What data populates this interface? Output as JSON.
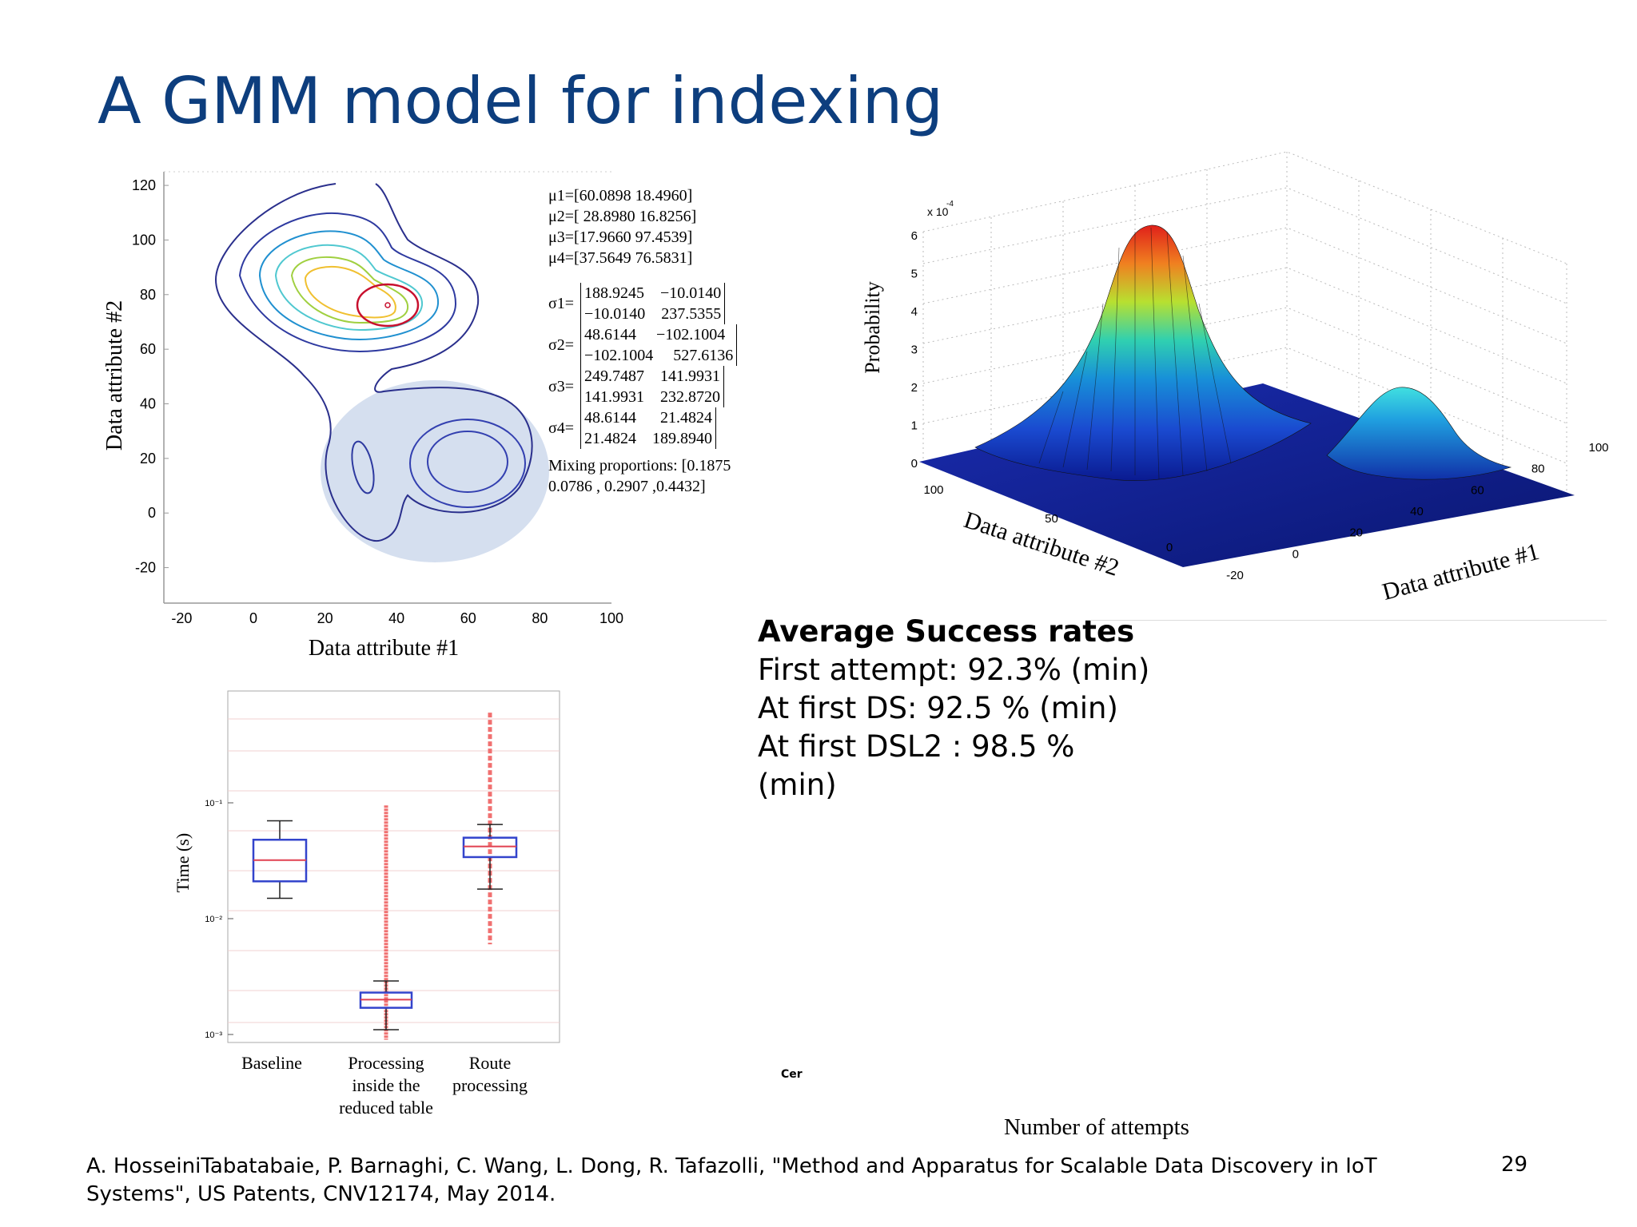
{
  "slide": {
    "title": "A GMM model for indexing",
    "page_number": "29",
    "footer": "A. HosseiniTabatabaie, P. Barnaghi, C. Wang, L. Dong, R. Tafazolli, \"Method and Apparatus for Scalable Data Discovery in IoT Systems\", US Patents, CNV12174, May 2014.",
    "stray_axis_label": "Number of attempts",
    "tiny_glyph": "Cer"
  },
  "stats": {
    "heading": "Average Success rates",
    "lines": [
      "First attempt: 92.3% (min)",
      "At first DS: 92.5 % (min)",
      "At first DSL2 : 98.5 %",
      "(min)"
    ]
  },
  "gmm": {
    "mu": [
      "μ1=[60.0898   18.4960]",
      "μ2=[ 28.8980   16.8256]",
      "μ3=[17.9660   97.4539]",
      "μ4=[37.5649   76.5831]"
    ],
    "sigma": [
      {
        "label": "σ1=",
        "r1": "188.9245    −10.0140",
        "r2": "−10.0140    237.5355"
      },
      {
        "label": "σ2=",
        "r1": "48.6144     −102.1004",
        "r2": "−102.1004     527.6136"
      },
      {
        "label": "σ3=",
        "r1": "249.7487    141.9931",
        "r2": "141.9931    232.8720"
      },
      {
        "label": "σ4=",
        "r1": "48.6144      21.4824",
        "r2": "21.4824    189.8940"
      }
    ],
    "mixing_line1": "Mixing proportions:  [0.1875",
    "mixing_line2": "0.0786 , 0.2907 ,0.4432]"
  },
  "chart_data": [
    {
      "type": "contour",
      "xlabel": "Data attribute #1",
      "ylabel": "Data attribute #2",
      "xticks": [
        "-20",
        "0",
        "20",
        "40",
        "60",
        "80",
        "100"
      ],
      "yticks": [
        "120",
        "100",
        "80",
        "60",
        "40",
        "20",
        "0",
        "-20"
      ],
      "xlim": [
        -25,
        100
      ],
      "ylim": [
        -33,
        125
      ]
    },
    {
      "type": "surface",
      "zlabel": "Probability",
      "zscale": "x 10",
      "zscale_exp": "-4",
      "zticks": [
        "6",
        "5",
        "4",
        "3",
        "2",
        "1",
        "0"
      ],
      "xlabel": "Data attribute #1",
      "xticks": [
        "-20",
        "0",
        "20",
        "40",
        "60",
        "80",
        "100"
      ],
      "ylabel": "Data attribute #2",
      "yticks": [
        "100",
        "50",
        "0"
      ]
    },
    {
      "type": "boxplot",
      "ylabel": "Time (s)",
      "yscale": "log",
      "yticks": [
        "10⁻¹",
        "10⁻²",
        "10⁻³"
      ],
      "categories": [
        "Baseline",
        "Processing inside the reduced table",
        "Route processing"
      ],
      "category_lines": [
        [
          "Baseline"
        ],
        [
          "Processing",
          "inside  the",
          "reduced table"
        ],
        [
          "Route",
          "processing"
        ]
      ],
      "series": [
        {
          "min": 0.015,
          "q1": 0.021,
          "median": 0.032,
          "q3": 0.048,
          "max": 0.07
        },
        {
          "min": 0.0011,
          "q1": 0.0017,
          "median": 0.002,
          "q3": 0.0023,
          "max": 0.0029,
          "outlier_range": [
            0.0009,
            0.095
          ]
        },
        {
          "min": 0.018,
          "q1": 0.034,
          "median": 0.042,
          "q3": 0.05,
          "max": 0.065,
          "outlier_range": [
            0.006,
            0.6
          ]
        }
      ]
    }
  ],
  "colors": {
    "title": "#0d3e7e",
    "box": "#3344cc",
    "median": "#e04050",
    "outlier": "#f07070"
  }
}
